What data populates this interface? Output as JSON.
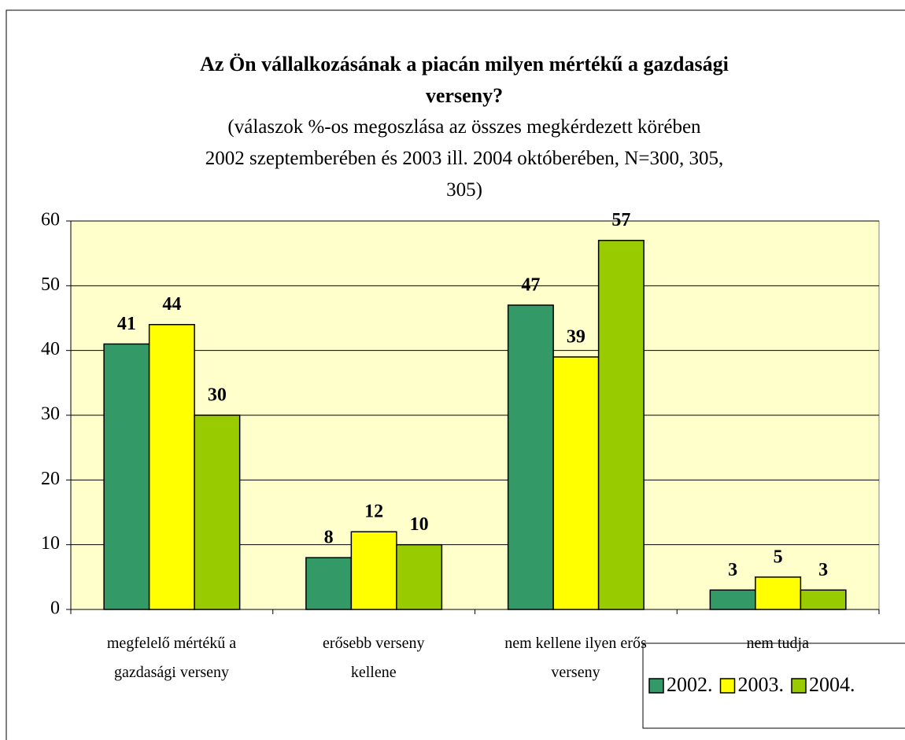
{
  "chart_data": {
    "type": "bar",
    "title": "Az Ön vállalkozásának a piacán milyen mértékű a  gazdasági\nverseny?",
    "subtitle": "(válaszok %-os megoszlása az összes megkérdezett körében\n2002 szeptemberében és 2003 ill. 2004 októberében, N=300, 305,\n305)",
    "categories": [
      "megfelelő mértékű a\ngazdasági verseny",
      "erősebb verseny\nkellene",
      "nem kellene ilyen erős\nverseny",
      "nem tudja"
    ],
    "series": [
      {
        "name": "2002.",
        "color": "#339966",
        "values": [
          41,
          8,
          47,
          3
        ]
      },
      {
        "name": "2003.",
        "color": "#ffff00",
        "values": [
          44,
          12,
          39,
          5
        ]
      },
      {
        "name": "2004.",
        "color": "#99cc00",
        "values": [
          30,
          10,
          57,
          3
        ]
      }
    ],
    "ylim": [
      0,
      60
    ],
    "yticks": [
      0,
      10,
      20,
      30,
      40,
      50,
      60
    ],
    "grid": true,
    "plot_background": "#ffffcc",
    "legend": "bottom-right"
  }
}
